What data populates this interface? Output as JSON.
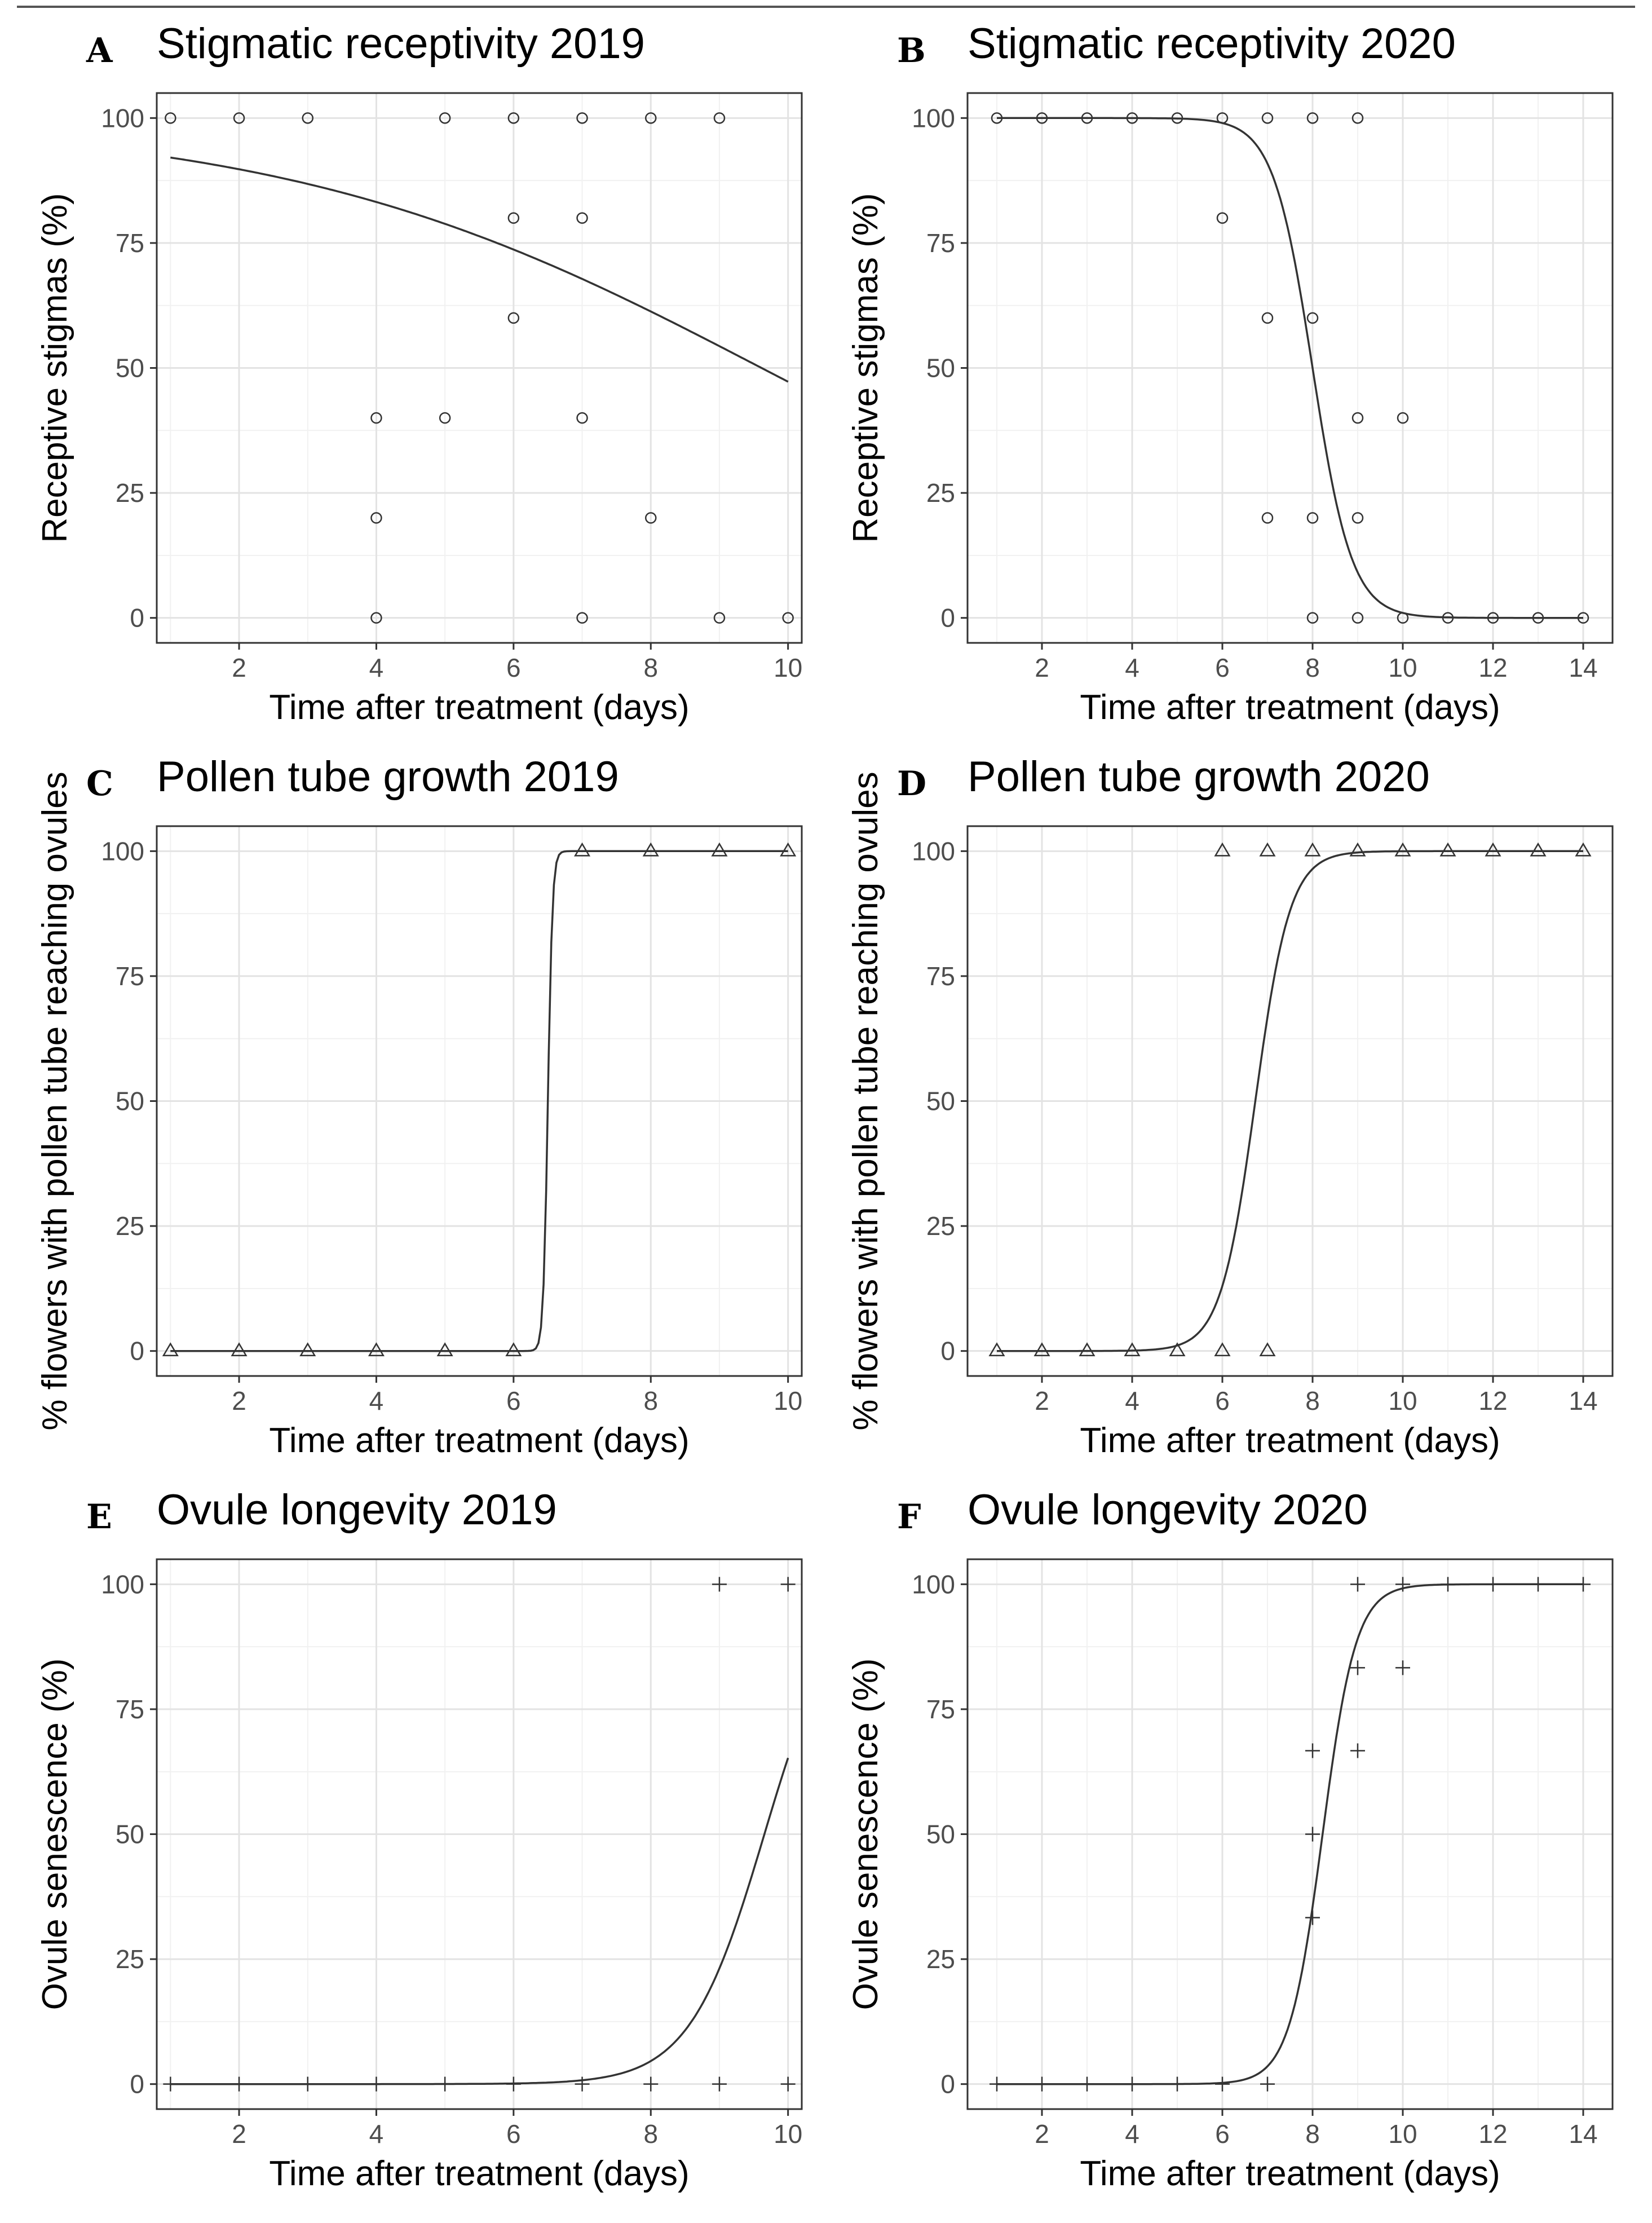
{
  "chart_data": [
    {
      "letter": "A",
      "type": "scatter",
      "title": "Stigmatic receptivity 2019",
      "xlabel": "Time after treatment (days)",
      "ylabel": "Receptive stigmas (%)",
      "xlim": [
        0.8,
        10.2
      ],
      "ylim": [
        -5,
        105
      ],
      "xticks": [
        2,
        4,
        6,
        8,
        10
      ],
      "yticks": [
        0,
        25,
        50,
        75,
        100
      ],
      "marker": "circle",
      "grid": true,
      "fit": {
        "model": "logistic",
        "a": 2.74,
        "b": -0.285,
        "x": [
          1,
          10
        ]
      },
      "points": [
        [
          1,
          100
        ],
        [
          2,
          100
        ],
        [
          3,
          100
        ],
        [
          5,
          100
        ],
        [
          6,
          100
        ],
        [
          7,
          100
        ],
        [
          8,
          100
        ],
        [
          9,
          100
        ],
        [
          6,
          80
        ],
        [
          7,
          80
        ],
        [
          6,
          60
        ],
        [
          4,
          40
        ],
        [
          5,
          40
        ],
        [
          7,
          40
        ],
        [
          4,
          20
        ],
        [
          8,
          20
        ],
        [
          4,
          0
        ],
        [
          7,
          0
        ],
        [
          9,
          0
        ],
        [
          10,
          0
        ]
      ]
    },
    {
      "letter": "B",
      "type": "scatter",
      "title": "Stigmatic receptivity 2020",
      "xlabel": "Time after treatment (days)",
      "ylabel": "Receptive stigmas (%)",
      "xlim": [
        0.35,
        14.65
      ],
      "ylim": [
        -5,
        105
      ],
      "xticks": [
        2,
        4,
        6,
        8,
        10,
        12,
        14
      ],
      "yticks": [
        0,
        25,
        50,
        75,
        100
      ],
      "marker": "circle",
      "grid": true,
      "fit": {
        "model": "logistic",
        "a": 18.4,
        "b": -2.3,
        "x": [
          1,
          14
        ]
      },
      "points": [
        [
          1,
          100
        ],
        [
          2,
          100
        ],
        [
          3,
          100
        ],
        [
          4,
          100
        ],
        [
          5,
          100
        ],
        [
          6,
          100
        ],
        [
          7,
          100
        ],
        [
          8,
          100
        ],
        [
          9,
          100
        ],
        [
          6,
          80
        ],
        [
          7,
          60
        ],
        [
          8,
          60
        ],
        [
          9,
          40
        ],
        [
          10,
          40
        ],
        [
          7,
          20
        ],
        [
          8,
          20
        ],
        [
          9,
          20
        ],
        [
          8,
          0
        ],
        [
          9,
          0
        ],
        [
          10,
          0
        ],
        [
          11,
          0
        ],
        [
          12,
          0
        ],
        [
          13,
          0
        ],
        [
          14,
          0
        ]
      ]
    },
    {
      "letter": "C",
      "type": "scatter",
      "title": "Pollen tube growth 2019",
      "xlabel": "Time after treatment (days)",
      "ylabel": "% flowers with pollen tube reaching ovules",
      "xlim": [
        0.8,
        10.2
      ],
      "ylim": [
        -5,
        105
      ],
      "xticks": [
        2,
        4,
        6,
        8,
        10
      ],
      "yticks": [
        0,
        25,
        50,
        75,
        100
      ],
      "marker": "triangle",
      "grid": true,
      "fit": {
        "model": "logistic",
        "a": -195,
        "b": 30,
        "x": [
          1,
          10
        ]
      },
      "points": [
        [
          1,
          0
        ],
        [
          2,
          0
        ],
        [
          3,
          0
        ],
        [
          4,
          0
        ],
        [
          5,
          0
        ],
        [
          6,
          0
        ],
        [
          7,
          100
        ],
        [
          8,
          100
        ],
        [
          9,
          100
        ],
        [
          10,
          100
        ]
      ]
    },
    {
      "letter": "D",
      "type": "scatter",
      "title": "Pollen tube growth 2020",
      "xlabel": "Time after treatment (days)",
      "ylabel": "% flowers with pollen tube reaching ovules",
      "xlim": [
        0.35,
        14.65
      ],
      "ylim": [
        -5,
        105
      ],
      "xticks": [
        2,
        4,
        6,
        8,
        10,
        12,
        14
      ],
      "yticks": [
        0,
        25,
        50,
        75,
        100
      ],
      "marker": "triangle",
      "grid": true,
      "fit": {
        "model": "logistic",
        "a": -17.5,
        "b": 2.6,
        "x": [
          1,
          14
        ]
      },
      "points": [
        [
          1,
          0
        ],
        [
          2,
          0
        ],
        [
          3,
          0
        ],
        [
          4,
          0
        ],
        [
          5,
          0
        ],
        [
          6,
          0
        ],
        [
          7,
          0
        ],
        [
          6,
          100
        ],
        [
          7,
          100
        ],
        [
          8,
          100
        ],
        [
          9,
          100
        ],
        [
          10,
          100
        ],
        [
          11,
          100
        ],
        [
          12,
          100
        ],
        [
          13,
          100
        ],
        [
          14,
          100
        ]
      ]
    },
    {
      "letter": "E",
      "type": "scatter",
      "title": "Ovule longevity 2019",
      "xlabel": "Time after treatment (days)",
      "ylabel": "Ovule senescence (%)",
      "xlim": [
        0.8,
        10.2
      ],
      "ylim": [
        -5,
        105
      ],
      "xticks": [
        2,
        4,
        6,
        8,
        10
      ],
      "yticks": [
        0,
        25,
        50,
        75,
        100
      ],
      "marker": "plus",
      "grid": true,
      "fit": {
        "model": "logistic",
        "a": -17.67,
        "b": 1.83,
        "x": [
          1,
          10
        ]
      },
      "points": [
        [
          1,
          0
        ],
        [
          2,
          0
        ],
        [
          3,
          0
        ],
        [
          4,
          0
        ],
        [
          5,
          0
        ],
        [
          6,
          0
        ],
        [
          7,
          0
        ],
        [
          8,
          0
        ],
        [
          9,
          0
        ],
        [
          10,
          0
        ],
        [
          9,
          100
        ],
        [
          10,
          100
        ]
      ]
    },
    {
      "letter": "F",
      "type": "scatter",
      "title": "Ovule longevity 2020",
      "xlabel": "Time after treatment (days)",
      "ylabel": "Ovule senescence (%)",
      "xlim": [
        0.35,
        14.65
      ],
      "ylim": [
        -5,
        105
      ],
      "xticks": [
        2,
        4,
        6,
        8,
        10,
        12,
        14
      ],
      "yticks": [
        0,
        25,
        50,
        75,
        100
      ],
      "marker": "plus",
      "grid": true,
      "fit": {
        "model": "logistic",
        "a": -22.2,
        "b": 2.7,
        "x": [
          1,
          14
        ]
      },
      "points": [
        [
          1,
          0
        ],
        [
          2,
          0
        ],
        [
          3,
          0
        ],
        [
          4,
          0
        ],
        [
          5,
          0
        ],
        [
          6,
          0
        ],
        [
          7,
          0
        ],
        [
          8,
          66.7
        ],
        [
          8,
          50
        ],
        [
          8,
          33.3
        ],
        [
          9,
          100
        ],
        [
          9,
          83.3
        ],
        [
          9,
          66.7
        ],
        [
          10,
          100
        ],
        [
          10,
          83.3
        ],
        [
          11,
          100
        ],
        [
          12,
          100
        ],
        [
          13,
          100
        ],
        [
          14,
          100
        ]
      ]
    }
  ]
}
